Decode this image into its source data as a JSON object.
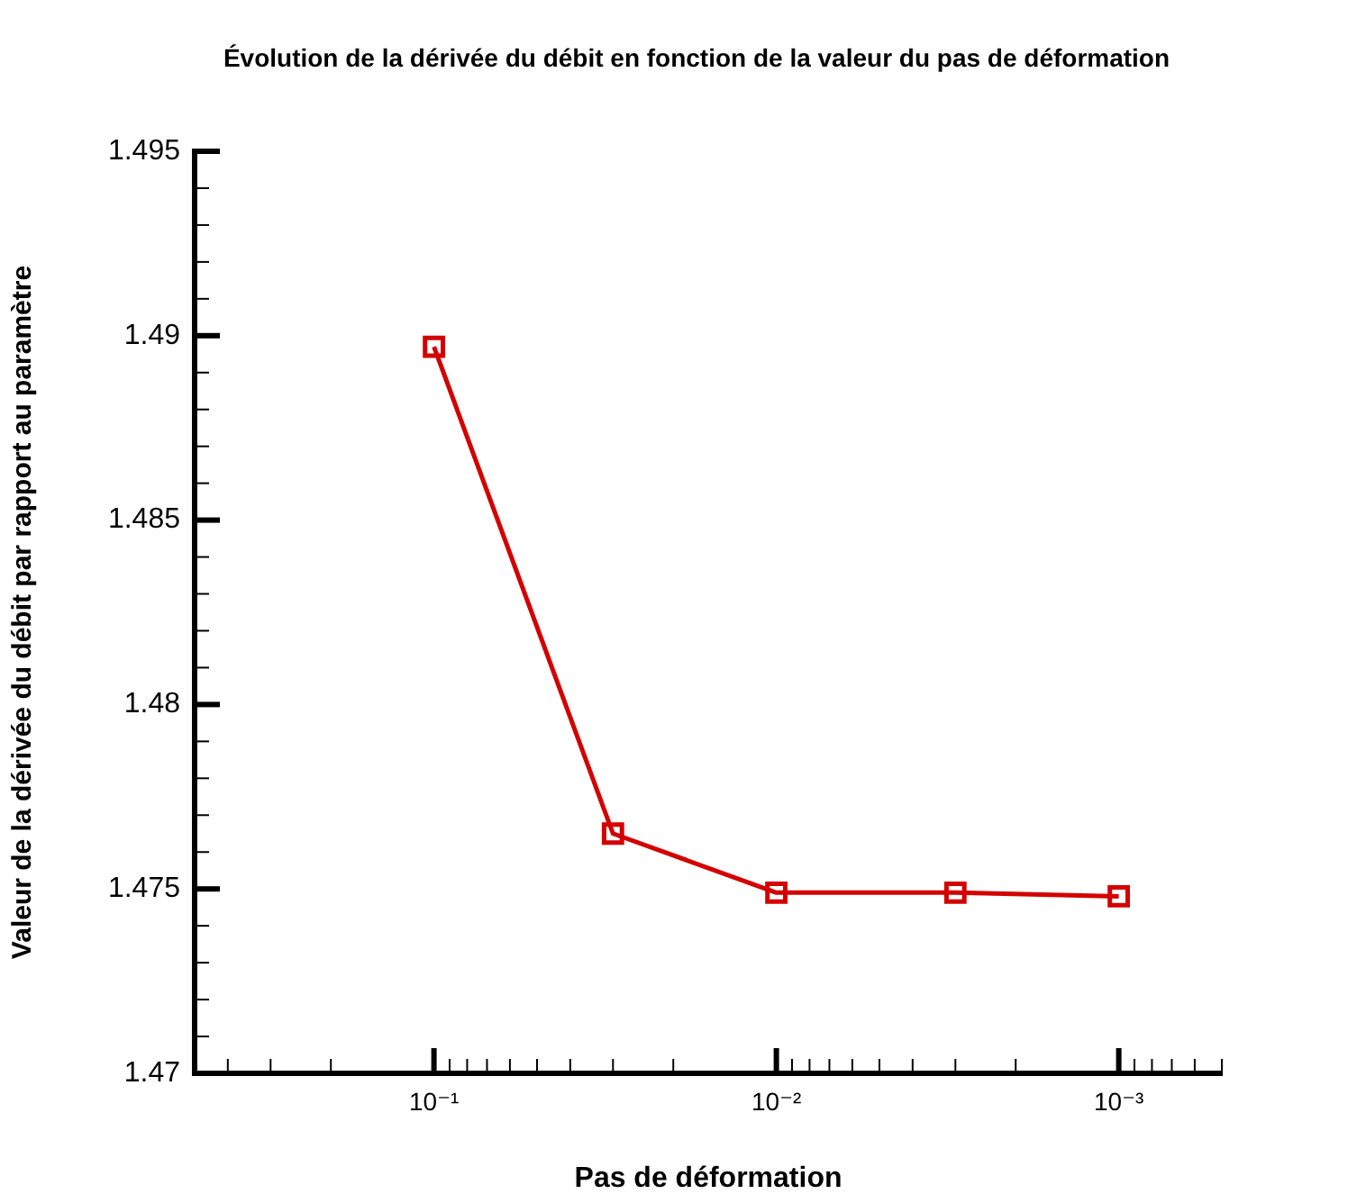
{
  "chart_data": {
    "type": "line",
    "title": "Évolution de la dérivée du débit en fonction de la valeur du pas de déformation",
    "xlabel": "Pas de déformation",
    "ylabel": "Valeur de la dérivée du débit par rapport au paramètre",
    "log": "x",
    "marker": "square",
    "line_style": "solid",
    "x": [
      0.1,
      0.03,
      0.01,
      0.003,
      0.001
    ],
    "series": [
      {
        "color": "#d40000",
        "values": [
          1.4897,
          1.4765,
          1.4749,
          1.4749,
          1.4748
        ]
      }
    ],
    "xlim": [
      0.5,
      0.0005
    ],
    "xticks": [
      {
        "value": 0.5,
        "label": null
      },
      {
        "value": 0.4,
        "label": null
      },
      {
        "value": 0.3,
        "label": null
      },
      {
        "value": 0.2,
        "label": null
      },
      {
        "value": 0.1,
        "label": "10⁻¹"
      },
      {
        "value": 0.09,
        "label": null
      },
      {
        "value": 0.08,
        "label": null
      },
      {
        "value": 0.07,
        "label": null
      },
      {
        "value": 0.06,
        "label": null
      },
      {
        "value": 0.05,
        "label": null
      },
      {
        "value": 0.04,
        "label": null
      },
      {
        "value": 0.03,
        "label": null
      },
      {
        "value": 0.02,
        "label": null
      },
      {
        "value": 0.01,
        "label": "10⁻²"
      },
      {
        "value": 0.009,
        "label": null
      },
      {
        "value": 0.008,
        "label": null
      },
      {
        "value": 0.007,
        "label": null
      },
      {
        "value": 0.006,
        "label": null
      },
      {
        "value": 0.005,
        "label": null
      },
      {
        "value": 0.004,
        "label": null
      },
      {
        "value": 0.003,
        "label": null
      },
      {
        "value": 0.002,
        "label": null
      },
      {
        "value": 0.001,
        "label": "10⁻³"
      },
      {
        "value": 0.0009,
        "label": null
      },
      {
        "value": 0.0008,
        "label": null
      },
      {
        "value": 0.0007,
        "label": null
      },
      {
        "value": 0.0006,
        "label": null
      },
      {
        "value": 0.0005,
        "label": null
      }
    ],
    "ylim": [
      1.47,
      1.495
    ],
    "yticks": [
      1.47,
      {
        "value": 1.471,
        "label": null
      },
      {
        "value": 1.472,
        "label": null
      },
      {
        "value": 1.473,
        "label": null
      },
      {
        "value": 1.474,
        "label": null
      },
      1.475,
      {
        "value": 1.476,
        "label": null
      },
      {
        "value": 1.477,
        "label": null
      },
      {
        "value": 1.478,
        "label": null
      },
      {
        "value": 1.479,
        "label": null
      },
      1.48,
      {
        "value": 1.481,
        "label": null
      },
      {
        "value": 1.482,
        "label": null
      },
      {
        "value": 1.483,
        "label": null
      },
      {
        "value": 1.484,
        "label": null
      },
      1.485,
      {
        "value": 1.486,
        "label": null
      },
      {
        "value": 1.487,
        "label": null
      },
      {
        "value": 1.488,
        "label": null
      },
      {
        "value": 1.489,
        "label": null
      },
      1.49,
      {
        "value": 1.491,
        "label": null
      },
      {
        "value": 1.492,
        "label": null
      },
      {
        "value": 1.493,
        "label": null
      },
      {
        "value": 1.494,
        "label": null
      },
      1.495
    ]
  }
}
